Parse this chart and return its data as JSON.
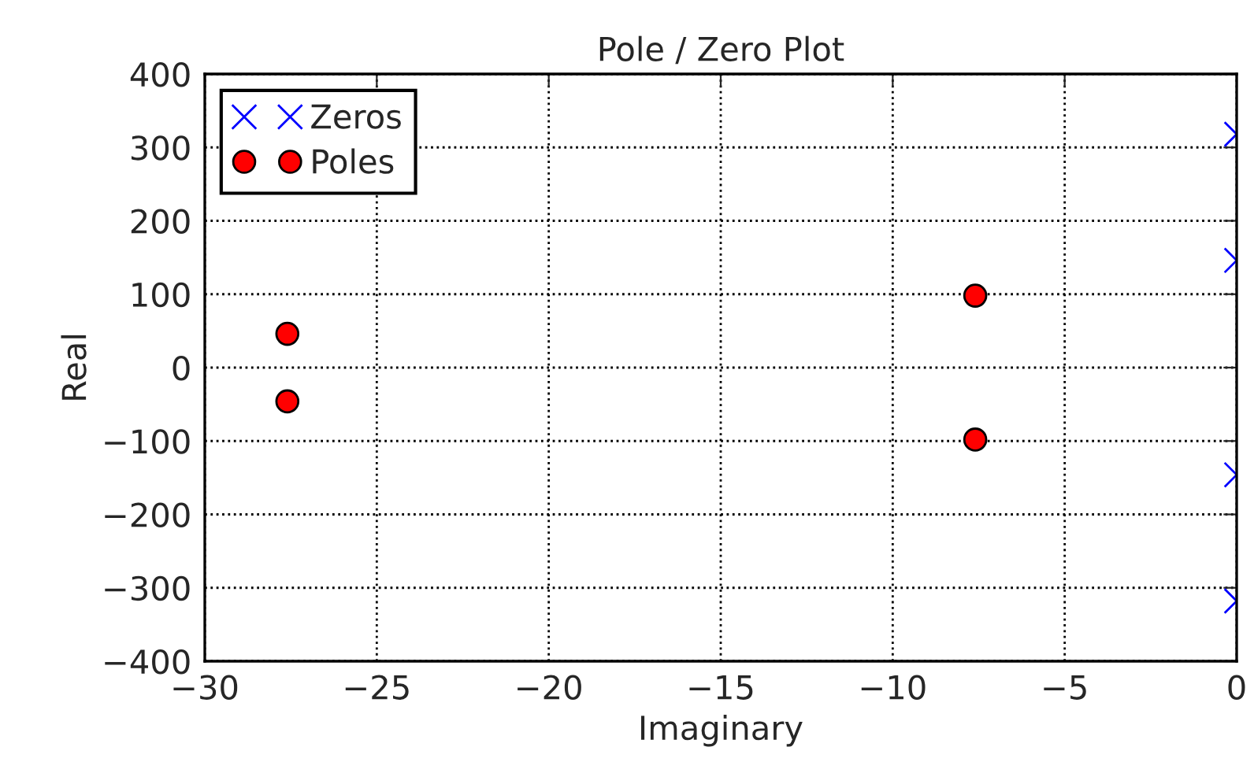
{
  "chart_data": {
    "type": "scatter",
    "title": "Pole / Zero Plot",
    "xlabel": "Imaginary",
    "ylabel": "Real",
    "xlim": [
      -30,
      0
    ],
    "xticks": [
      -30,
      -25,
      -20,
      -15,
      -10,
      -5,
      0
    ],
    "ylim": [
      -400,
      400
    ],
    "yticks": [
      -400,
      -300,
      -200,
      -100,
      0,
      100,
      200,
      300,
      400
    ],
    "grid": true,
    "legend": "top left",
    "series": [
      {
        "name": "Zeros",
        "color": "#0000ff",
        "marker": "cross",
        "x": [
          0,
          0,
          0,
          0
        ],
        "values": [
          318,
          146,
          -146,
          -318
        ]
      },
      {
        "name": "Poles",
        "color": "#ff0000",
        "marker": "circle",
        "x": [
          -27.6,
          -27.6,
          -7.6,
          -7.6
        ],
        "values": [
          46,
          -46,
          98,
          -98
        ]
      }
    ]
  }
}
